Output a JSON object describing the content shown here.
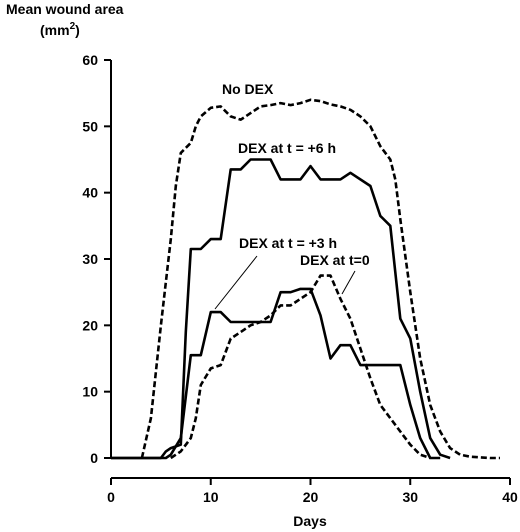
{
  "chart_data": {
    "type": "line",
    "xlabel": "Days",
    "ylabel_line1": "Mean wound area",
    "ylabel_line2_base": "(mm",
    "ylabel_line2_sup": "2",
    "ylabel_line2_end": ")",
    "xlim": [
      0,
      40
    ],
    "ylim": [
      0,
      60
    ],
    "x_ticks": [
      0,
      10,
      20,
      30,
      40
    ],
    "y_ticks": [
      0,
      10,
      20,
      30,
      40,
      50,
      60
    ],
    "grid": false,
    "legend": "none",
    "series": [
      {
        "name": "No DEX",
        "style": "dashed",
        "color": "#000000",
        "points": [
          [
            3.1,
            0
          ],
          [
            4,
            6
          ],
          [
            5,
            20
          ],
          [
            6,
            33
          ],
          [
            6.5,
            41
          ],
          [
            7,
            46
          ],
          [
            8,
            47.5
          ],
          [
            8.5,
            50
          ],
          [
            9,
            51.5
          ],
          [
            10,
            52.8
          ],
          [
            11,
            53
          ],
          [
            12,
            51.5
          ],
          [
            13,
            51
          ],
          [
            14,
            52
          ],
          [
            15,
            53
          ],
          [
            16,
            53.2
          ],
          [
            17,
            53.5
          ],
          [
            18,
            53.2
          ],
          [
            19,
            53.5
          ],
          [
            20,
            54
          ],
          [
            21,
            53.8
          ],
          [
            22,
            53.3
          ],
          [
            23,
            53
          ],
          [
            24,
            52.5
          ],
          [
            25,
            51.5
          ],
          [
            26,
            50
          ],
          [
            27,
            47
          ],
          [
            28,
            45
          ],
          [
            28.5,
            42
          ],
          [
            29,
            36
          ],
          [
            30,
            25
          ],
          [
            31,
            15
          ],
          [
            32,
            8
          ],
          [
            33,
            4
          ],
          [
            34,
            1.5
          ],
          [
            35,
            0.5
          ],
          [
            36,
            0.2
          ],
          [
            38,
            0
          ],
          [
            39,
            0
          ]
        ]
      },
      {
        "name": "DEX at t = +6 h",
        "style": "solid",
        "color": "#000000",
        "points": [
          [
            0,
            0
          ],
          [
            5,
            0
          ],
          [
            5.5,
            1
          ],
          [
            6,
            1.5
          ],
          [
            7,
            2
          ],
          [
            7.5,
            19
          ],
          [
            8,
            31.5
          ],
          [
            9,
            31.5
          ],
          [
            10,
            33
          ],
          [
            11,
            33
          ],
          [
            12,
            43.5
          ],
          [
            13,
            43.5
          ],
          [
            14,
            45
          ],
          [
            16,
            45
          ],
          [
            17,
            42
          ],
          [
            19,
            42
          ],
          [
            20,
            44
          ],
          [
            21,
            42
          ],
          [
            23,
            42
          ],
          [
            24,
            43
          ],
          [
            26,
            41
          ],
          [
            27,
            36.5
          ],
          [
            28,
            35
          ],
          [
            29,
            21
          ],
          [
            30,
            18
          ],
          [
            31,
            10
          ],
          [
            32,
            3
          ],
          [
            33,
            0.5
          ],
          [
            34,
            0
          ]
        ]
      },
      {
        "name": "DEX at t = +3 h",
        "style": "solid",
        "color": "#000000",
        "points": [
          [
            0,
            0
          ],
          [
            5.5,
            0
          ],
          [
            6,
            0.5
          ],
          [
            7,
            3
          ],
          [
            8,
            15.5
          ],
          [
            9,
            15.5
          ],
          [
            10,
            22
          ],
          [
            11,
            22
          ],
          [
            12,
            20.5
          ],
          [
            15,
            20.5
          ],
          [
            16,
            20.5
          ],
          [
            17,
            25
          ],
          [
            18,
            25
          ],
          [
            19,
            25.5
          ],
          [
            20,
            25.5
          ],
          [
            21,
            21.5
          ],
          [
            22,
            15
          ],
          [
            23,
            17
          ],
          [
            24,
            17
          ],
          [
            25,
            14
          ],
          [
            28,
            14
          ],
          [
            29,
            14
          ],
          [
            30,
            8
          ],
          [
            31,
            3
          ],
          [
            32,
            0
          ],
          [
            33,
            0
          ]
        ]
      },
      {
        "name": "DEX at t=0",
        "style": "dashed",
        "color": "#000000",
        "points": [
          [
            6,
            0
          ],
          [
            7,
            1
          ],
          [
            8,
            3
          ],
          [
            8.5,
            6
          ],
          [
            9,
            11
          ],
          [
            10,
            13.5
          ],
          [
            11,
            14
          ],
          [
            12,
            18
          ],
          [
            13,
            19
          ],
          [
            14,
            20
          ],
          [
            15,
            20.5
          ],
          [
            16,
            21.5
          ],
          [
            17,
            23
          ],
          [
            18,
            23
          ],
          [
            19,
            24
          ],
          [
            20,
            25
          ],
          [
            21,
            27.5
          ],
          [
            22,
            27.5
          ],
          [
            23,
            24
          ],
          [
            24,
            21
          ],
          [
            25,
            16.5
          ],
          [
            26,
            12
          ],
          [
            27,
            8
          ],
          [
            28,
            6
          ],
          [
            29,
            4
          ],
          [
            30,
            2
          ],
          [
            31,
            0.5
          ],
          [
            32,
            0
          ]
        ]
      }
    ],
    "annotations": [
      {
        "text": "No DEX",
        "series": "No DEX"
      },
      {
        "text": "DEX at t = +6 h",
        "series": "DEX at t = +6 h"
      },
      {
        "text": "DEX at t = +3 h",
        "series": "DEX at t = +3 h"
      },
      {
        "text": "DEX at t=0",
        "series": "DEX at t=0"
      }
    ]
  }
}
